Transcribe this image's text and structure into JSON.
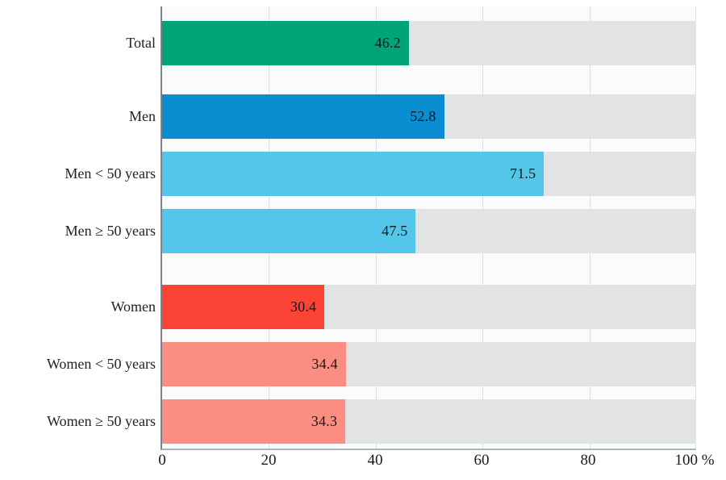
{
  "chart_data": {
    "type": "bar",
    "orientation": "horizontal",
    "title": "",
    "xlabel": "%",
    "xlim": [
      0,
      100
    ],
    "x_ticks": [
      0,
      20,
      40,
      60,
      80,
      100
    ],
    "x_tick_labels": [
      "0",
      "20",
      "40",
      "60",
      "80",
      "100 %"
    ],
    "grid": true,
    "track_color": "#e2e3e5",
    "background_color": "#fafbfb",
    "categories": [
      "Total",
      "Men",
      "Men < 50 years",
      "Men ≥ 50 years",
      "Women",
      "Women < 50 years",
      "Women ≥ 50 years"
    ],
    "values": [
      46.2,
      52.8,
      71.5,
      47.5,
      30.4,
      34.4,
      34.3
    ],
    "bars": [
      {
        "label": "Total",
        "value": 46.2,
        "value_label": "46.2",
        "color": "#00a478",
        "group": "total"
      },
      {
        "label": "Men",
        "value": 52.8,
        "value_label": "52.8",
        "color": "#0a8dd1",
        "group": "men"
      },
      {
        "label": "Men < 50 years",
        "value": 71.5,
        "value_label": "71.5",
        "color": "#54c6e9",
        "group": "men"
      },
      {
        "label": "Men ≥ 50 years",
        "value": 47.5,
        "value_label": "47.5",
        "color": "#54c6e9",
        "group": "men"
      },
      {
        "label": "Women",
        "value": 30.4,
        "value_label": "30.4",
        "color": "#fb4336",
        "group": "women"
      },
      {
        "label": "Women < 50 years",
        "value": 34.4,
        "value_label": "34.4",
        "color": "#fc8d83",
        "group": "women"
      },
      {
        "label": "Women ≥ 50 years",
        "value": 34.3,
        "value_label": "34.3",
        "color": "#fc8d83",
        "group": "women"
      }
    ]
  }
}
